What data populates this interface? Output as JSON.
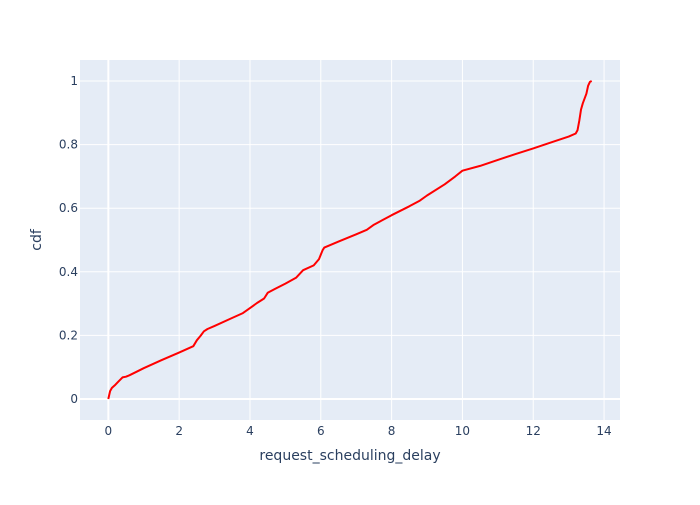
{
  "chart_data": {
    "type": "line",
    "title": "",
    "xlabel": "request_scheduling_delay",
    "ylabel": "cdf",
    "xlim": [
      -0.8,
      14.45
    ],
    "ylim": [
      -0.066,
      1.066
    ],
    "x_ticks": [
      0,
      2,
      4,
      6,
      8,
      10,
      12,
      14
    ],
    "y_ticks": [
      0,
      0.2,
      0.4,
      0.6,
      0.8,
      1
    ],
    "x_tick_labels": [
      "0",
      "2",
      "4",
      "6",
      "8",
      "10",
      "12",
      "14"
    ],
    "y_tick_labels": [
      "0",
      "0.2",
      "0.4",
      "0.6",
      "0.8",
      "1"
    ],
    "grid": true,
    "legend": "none",
    "colors": {
      "plot_background": "#e5ecf6",
      "grid": "#ffffff",
      "line": "#ff0000",
      "text": "#2a3f5f"
    },
    "series": [
      {
        "x": [
          0.0,
          0.05,
          0.1,
          0.2,
          0.3,
          0.4,
          0.5,
          0.6,
          0.8,
          1.0,
          1.5,
          2.0,
          2.4,
          2.5,
          2.6,
          2.7,
          2.8,
          3.0,
          3.5,
          3.8,
          4.0,
          4.2,
          4.4,
          4.5,
          4.7,
          5.0,
          5.3,
          5.5,
          5.8,
          5.95,
          6.05,
          6.1,
          6.5,
          7.0,
          7.3,
          7.5,
          8.0,
          8.5,
          8.8,
          9.0,
          9.5,
          9.8,
          10.0,
          10.5,
          11.0,
          11.5,
          12.0,
          12.5,
          13.0,
          13.2,
          13.25,
          13.3,
          13.35,
          13.4,
          13.5,
          13.55,
          13.6,
          13.65
        ],
        "y": [
          0.0,
          0.025,
          0.035,
          0.045,
          0.057,
          0.068,
          0.07,
          0.075,
          0.086,
          0.097,
          0.122,
          0.146,
          0.166,
          0.185,
          0.198,
          0.213,
          0.22,
          0.23,
          0.255,
          0.27,
          0.286,
          0.302,
          0.316,
          0.334,
          0.346,
          0.363,
          0.381,
          0.405,
          0.42,
          0.44,
          0.468,
          0.476,
          0.495,
          0.518,
          0.532,
          0.548,
          0.578,
          0.606,
          0.624,
          0.64,
          0.675,
          0.7,
          0.718,
          0.733,
          0.752,
          0.77,
          0.788,
          0.807,
          0.825,
          0.835,
          0.845,
          0.875,
          0.91,
          0.93,
          0.96,
          0.985,
          0.997,
          1.0
        ]
      }
    ]
  }
}
